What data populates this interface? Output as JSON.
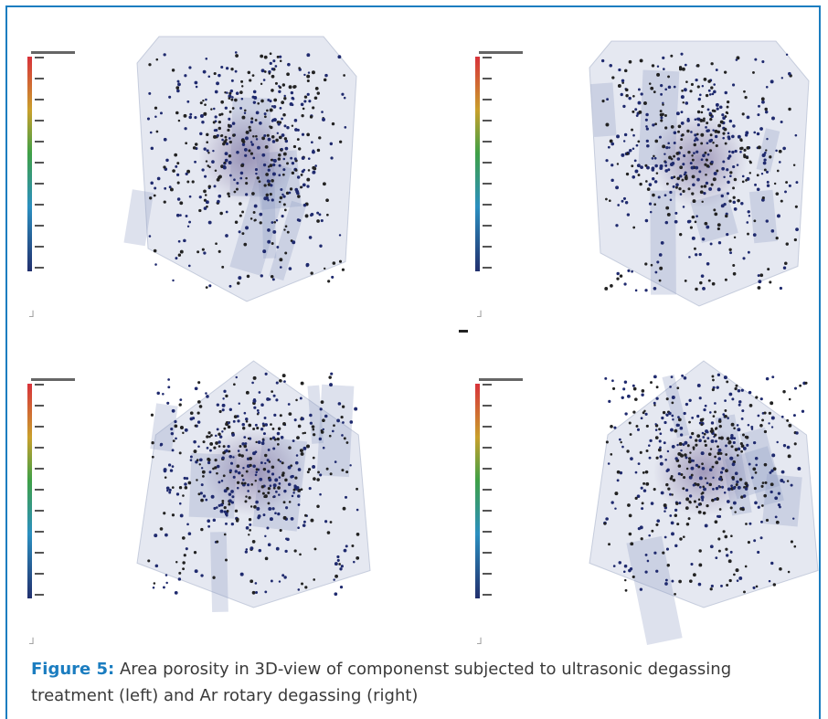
{
  "caption": {
    "label": "Figure 5:",
    "text": "Area porosity in 3D-view of componenst subjected to ultrasonic degassing treatment (left) and Ar rotary degassing (right)"
  }
}
